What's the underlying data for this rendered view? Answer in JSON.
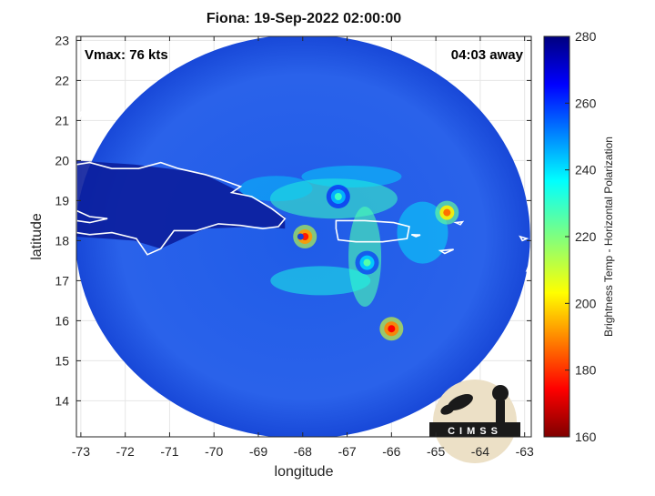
{
  "chart_data": {
    "type": "heatmap",
    "title": "Fiona: 19-Sep-2022 02:00:00",
    "xlabel": "longitude",
    "ylabel": "latitude",
    "xlim": [
      -73.1,
      -62.85
    ],
    "ylim": [
      13.1,
      23.1
    ],
    "x_ticks": [
      -73,
      -72,
      -71,
      -70,
      -69,
      -68,
      -67,
      -66,
      -65,
      -64,
      -63
    ],
    "y_ticks": [
      14,
      15,
      16,
      17,
      18,
      19,
      20,
      21,
      22,
      23
    ],
    "colorbar": {
      "label": "Brightness Temp - Horizontal Polarization",
      "range": [
        160,
        280
      ],
      "ticks": [
        160,
        180,
        200,
        220,
        240,
        260,
        280
      ],
      "colormap": "jet"
    },
    "annotations": {
      "vmax": "Vmax: 76 kts",
      "time_away": "04:03 away"
    },
    "swath": {
      "center_lon": -68.0,
      "center_lat": 18.1,
      "background_value": 260
    },
    "features": [
      {
        "lon": -67.95,
        "lat": 18.1,
        "value": 178
      },
      {
        "lon": -66.0,
        "lat": 15.8,
        "value": 175
      },
      {
        "lon": -64.75,
        "lat": 18.7,
        "value": 188
      },
      {
        "lon": -66.55,
        "lat": 17.45,
        "value": 225
      },
      {
        "lon": -67.2,
        "lat": 19.1,
        "value": 228
      }
    ],
    "grid": true,
    "logo": "CIMSS"
  }
}
